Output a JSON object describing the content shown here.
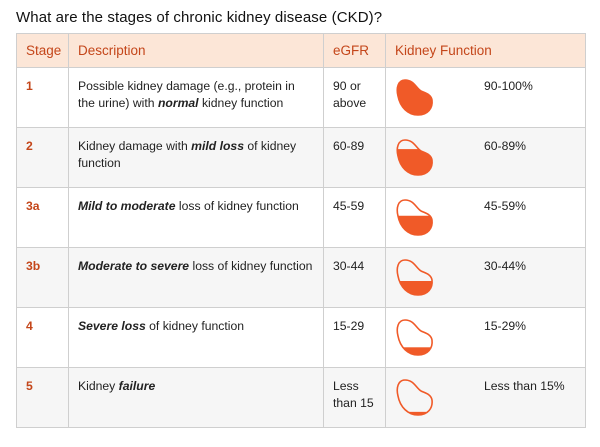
{
  "title": "What are the stages of chronic kidney disease (CKD)?",
  "table": {
    "headers": [
      "Stage",
      "Description",
      "eGFR",
      "Kidney Function"
    ],
    "rows": [
      {
        "stage": "1",
        "description": [
          {
            "text": "Possible kidney damage (e.g., protein in the urine) with "
          },
          {
            "text": "normal",
            "emphasis": true
          },
          {
            "text": " kidney function"
          }
        ],
        "egfr": "90 or above",
        "function": "90-100%"
      },
      {
        "stage": "2",
        "description": [
          {
            "text": "Kidney damage with "
          },
          {
            "text": "mild loss",
            "emphasis": true
          },
          {
            "text": " of kidney function"
          }
        ],
        "egfr": "60-89",
        "function": "60-89%"
      },
      {
        "stage": "3a",
        "description": [
          {
            "text": "Mild to moderate",
            "emphasis": true
          },
          {
            "text": " loss of kidney function"
          }
        ],
        "egfr": "45-59",
        "function": "45-59%"
      },
      {
        "stage": "3b",
        "description": [
          {
            "text": "Moderate to severe",
            "emphasis": true
          },
          {
            "text": " loss of kidney function"
          }
        ],
        "egfr": "30-44",
        "function": "30-44%"
      },
      {
        "stage": "4",
        "description": [
          {
            "text": "Severe loss",
            "emphasis": true
          },
          {
            "text": " of kidney function"
          }
        ],
        "egfr": "15-29",
        "function": "15-29%"
      },
      {
        "stage": "5",
        "description": [
          {
            "text": "Kidney "
          },
          {
            "text": "failure",
            "emphasis": true
          }
        ],
        "egfr": "Less than 15",
        "function": "Less than 15%"
      }
    ]
  }
}
